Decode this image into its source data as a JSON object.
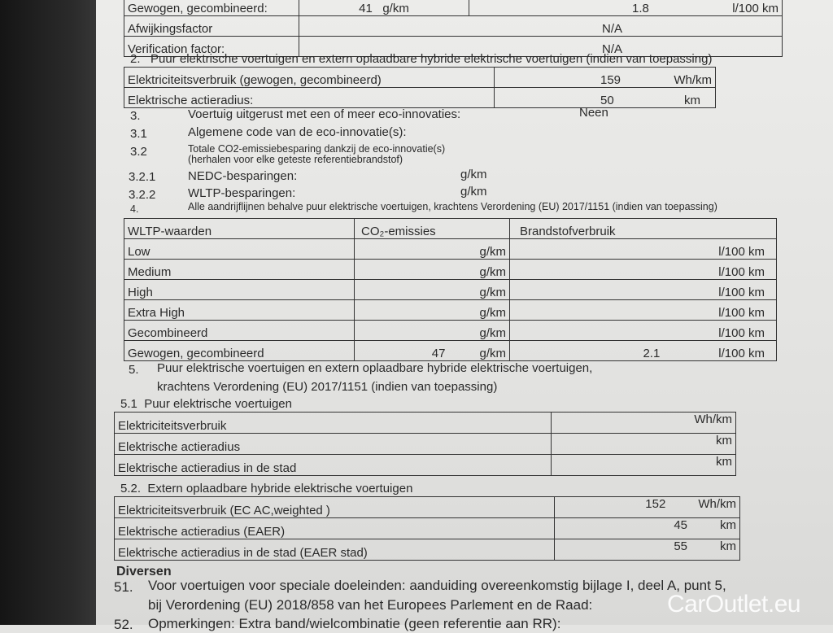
{
  "section1": {
    "rows": [
      {
        "label": "Gewogen, gecombineerd:",
        "co2": "41",
        "co2_unit": "g/km",
        "fuel": "1.8",
        "fuel_unit": "l/100 km"
      },
      {
        "label": "Afwijkingsfactor",
        "value": "N/A"
      },
      {
        "label": "Verification factor:",
        "value": "N/A"
      }
    ]
  },
  "section2": {
    "num": "2.",
    "title": "Puur elektrische voertuigen en extern oplaadbare hybride elektrische voertuigen (indien van toepassing)",
    "rows": [
      {
        "label": "Elektriciteitsverbruik (gewogen, gecombineerd)",
        "value": "159",
        "unit": "Wh/km"
      },
      {
        "label": "Elektrische actieradius:",
        "value": "50",
        "unit": "km"
      }
    ]
  },
  "section3": {
    "items": [
      {
        "num": "3.",
        "text": "Voertuig uitgerust met een of meer eco-innovaties:",
        "value": "Neen"
      },
      {
        "num": "3.1",
        "text": "Algemene code van de eco-innovatie(s):"
      },
      {
        "num": "3.2",
        "text": "Totale CO2-emissiebesparing dankzij de eco-innovatie(s)",
        "text2": "(herhalen voor elke geteste referentiebrandstof)"
      },
      {
        "num": "3.2.1",
        "text": "NEDC-besparingen:",
        "unit": "g/km"
      },
      {
        "num": "3.2.2",
        "text": "WLTP-besparingen:",
        "unit": "g/km"
      }
    ]
  },
  "section4": {
    "num": "4.",
    "title": "Alle aandrijflijnen behalve puur elektrische voertuigen, krachtens Verordening (EU) 2017/1151 (indien van toepassing)",
    "headers": [
      "WLTP-waarden",
      "CO₂-emissies",
      "Brandstofverbruik"
    ],
    "rows": [
      {
        "label": "Low",
        "co2": "",
        "co2_unit": "g/km",
        "fuel": "",
        "fuel_unit": "l/100 km"
      },
      {
        "label": "Medium",
        "co2": "",
        "co2_unit": "g/km",
        "fuel": "",
        "fuel_unit": "l/100 km"
      },
      {
        "label": "High",
        "co2": "",
        "co2_unit": "g/km",
        "fuel": "",
        "fuel_unit": "l/100 km"
      },
      {
        "label": "Extra High",
        "co2": "",
        "co2_unit": "g/km",
        "fuel": "",
        "fuel_unit": "l/100 km"
      },
      {
        "label": "Gecombineerd",
        "co2": "",
        "co2_unit": "g/km",
        "fuel": "",
        "fuel_unit": "l/100 km"
      },
      {
        "label": "Gewogen, gecombineerd",
        "co2": "47",
        "co2_unit": "g/km",
        "fuel": "2.1",
        "fuel_unit": "l/100 km"
      }
    ]
  },
  "section5": {
    "num": "5.",
    "title": "Puur elektrische voertuigen en extern oplaadbare hybride elektrische voertuigen,",
    "title2": "krachtens Verordening (EU) 2017/1151 (indien van toepassing)",
    "sub1": {
      "num": "5.1",
      "title": "Puur elektrische voertuigen",
      "rows": [
        {
          "label": "Elektriciteitsverbruik",
          "value": "",
          "unit": "Wh/km"
        },
        {
          "label": "Elektrische actieradius",
          "value": "",
          "unit": "km"
        },
        {
          "label": "Elektrische actieradius in de stad",
          "value": "",
          "unit": "km"
        }
      ]
    },
    "sub2": {
      "num": "5.2.",
      "title": "Extern oplaadbare hybride elektrische voertuigen",
      "rows": [
        {
          "label": "Elektriciteitsverbruik (EC AC,weighted )",
          "value": "152",
          "unit": "Wh/km"
        },
        {
          "label": "Elektrische actieradius (EAER)",
          "value": "45",
          "unit": "km"
        },
        {
          "label": "Elektrische actieradius in de stad (EAER stad)",
          "value": "55",
          "unit": "km"
        }
      ]
    }
  },
  "diversen": {
    "title": "Diversen",
    "num": "51.",
    "line1": "Voor voertuigen voor speciale doeleinden: aanduiding overeenkomstig bijlage I, deel A, punt 5,",
    "line2": "bij Verordening (EU) 2018/858 van het Europees Parlement en de Raad:",
    "num52": "52.",
    "line3": "Opmerkingen: Extra band/wielcombinatie (geen referentie aan RR):"
  },
  "watermark": "CarOutlet.eu"
}
